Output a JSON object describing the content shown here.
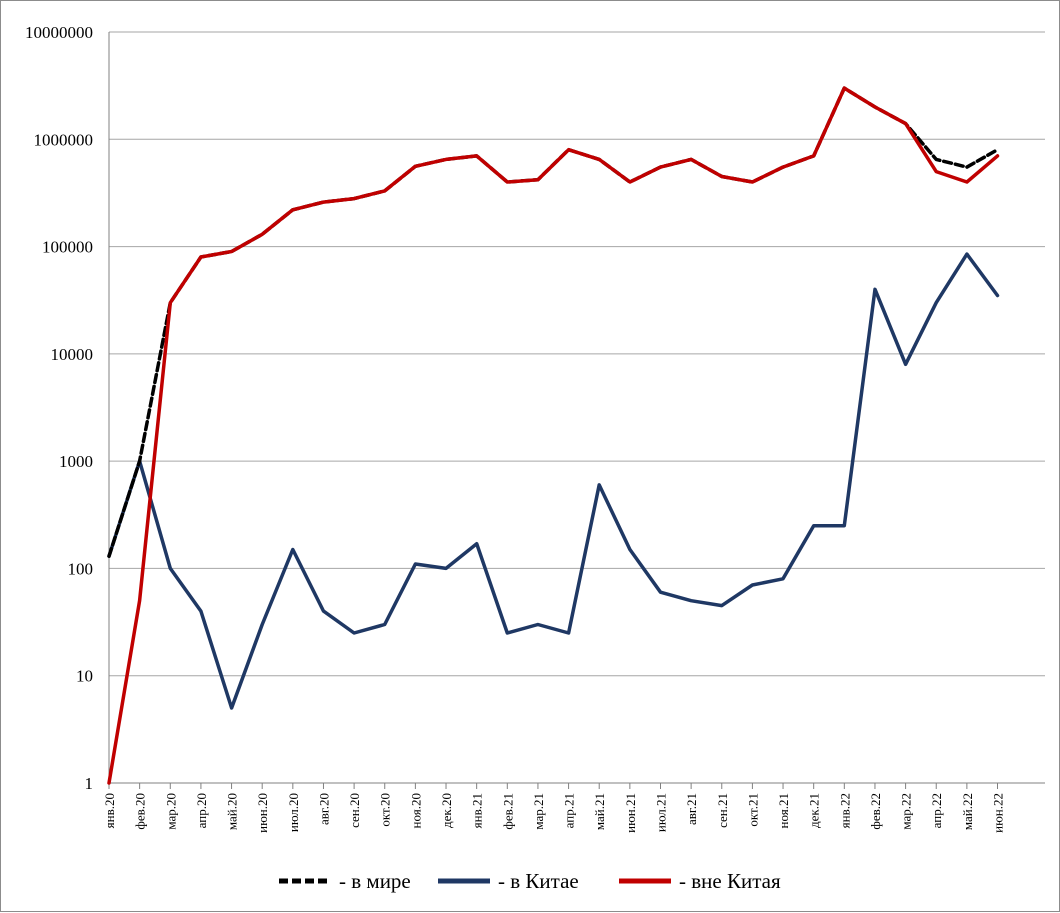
{
  "chart_data": {
    "type": "line",
    "y_scale": "log",
    "ylim": [
      1,
      10000000
    ],
    "y_ticks": [
      {
        "value": 1,
        "label": "1"
      },
      {
        "value": 10,
        "label": "10"
      },
      {
        "value": 100,
        "label": "100"
      },
      {
        "value": 1000,
        "label": "1000"
      },
      {
        "value": 10000,
        "label": "10000"
      },
      {
        "value": 100000,
        "label": "100000"
      },
      {
        "value": 1000000,
        "label": "1000000"
      },
      {
        "value": 10000000,
        "label": "10000000"
      }
    ],
    "x_tick_labels": [
      "янв.20",
      "фев.20",
      "мар.20",
      "апр.20",
      "май.20",
      "июн.20",
      "июл.20",
      "авг.20",
      "сен.20",
      "окт.20",
      "ноя.20",
      "дек.20",
      "янв.21",
      "фев.21",
      "мар.21",
      "апр.21",
      "май.21",
      "июн.21",
      "июл.21",
      "авг.21",
      "сен.21",
      "окт.21",
      "ноя.21",
      "дек.21",
      "янв.22",
      "фев.22",
      "мар.22",
      "апр.22",
      "май.22",
      "июн.22"
    ],
    "grid": true,
    "legend_position": "bottom",
    "series": [
      {
        "name": "- в мире",
        "color": "#000000",
        "style": "dashed",
        "x": [
          "янв.20",
          "фев.20",
          "мар.20",
          "апр.20",
          "май.20",
          "июн.20",
          "июл.20",
          "авг.20",
          "сен.20",
          "окт.20",
          "ноя.20",
          "дек.20",
          "янв.21",
          "фев.21",
          "мар.21",
          "апр.21",
          "май.21",
          "июн.21",
          "июл.21",
          "авг.21",
          "сен.21",
          "окт.21",
          "ноя.21",
          "дек.21",
          "янв.22",
          "фев.22",
          "мар.22",
          "апр.22",
          "май.22",
          "июн.22"
        ],
        "values": [
          130,
          1000,
          30000,
          80000,
          90000,
          130000,
          220000,
          260000,
          280000,
          330000,
          560000,
          650000,
          700000,
          400000,
          420000,
          800000,
          650000,
          400000,
          550000,
          650000,
          450000,
          400000,
          550000,
          700000,
          3000000,
          2000000,
          1400000,
          650000,
          550000,
          800000
        ]
      },
      {
        "name": "-  в Китае",
        "color": "#1f3864",
        "style": "solid",
        "x": [
          "янв.20",
          "фев.20",
          "мар.20",
          "апр.20",
          "май.20",
          "июн.20",
          "июл.20",
          "авг.20",
          "сен.20",
          "окт.20",
          "ноя.20",
          "дек.20",
          "янв.21",
          "фев.21",
          "мар.21",
          "апр.21",
          "май.21",
          "июн.21",
          "июл.21",
          "авг.21",
          "сен.21",
          "окт.21",
          "ноя.21",
          "дек.21",
          "янв.22",
          "фев.22",
          "мар.22",
          "апр.22",
          "май.22",
          "июн.22"
        ],
        "values": [
          130,
          1000,
          100,
          40,
          5,
          30,
          150,
          40,
          25,
          30,
          110,
          100,
          170,
          25,
          30,
          25,
          600,
          150,
          60,
          50,
          45,
          70,
          80,
          250,
          250,
          40000,
          8000,
          30000,
          85000,
          35000
        ]
      },
      {
        "name": "- вне Китая",
        "color": "#c00000",
        "style": "solid",
        "x": [
          "янв.20",
          "фев.20",
          "мар.20",
          "апр.20",
          "май.20",
          "июн.20",
          "июл.20",
          "авг.20",
          "сен.20",
          "окт.20",
          "ноя.20",
          "дек.20",
          "янв.21",
          "фев.21",
          "мар.21",
          "апр.21",
          "май.21",
          "июн.21",
          "июл.21",
          "авг.21",
          "сен.21",
          "окт.21",
          "ноя.21",
          "дек.21",
          "янв.22",
          "фев.22",
          "мар.22",
          "апр.22",
          "май.22",
          "июн.22"
        ],
        "values": [
          1,
          50,
          30000,
          80000,
          90000,
          130000,
          220000,
          260000,
          280000,
          330000,
          560000,
          650000,
          700000,
          400000,
          420000,
          800000,
          650000,
          400000,
          550000,
          650000,
          450000,
          400000,
          550000,
          700000,
          3000000,
          2000000,
          1400000,
          500000,
          400000,
          700000
        ]
      }
    ]
  }
}
